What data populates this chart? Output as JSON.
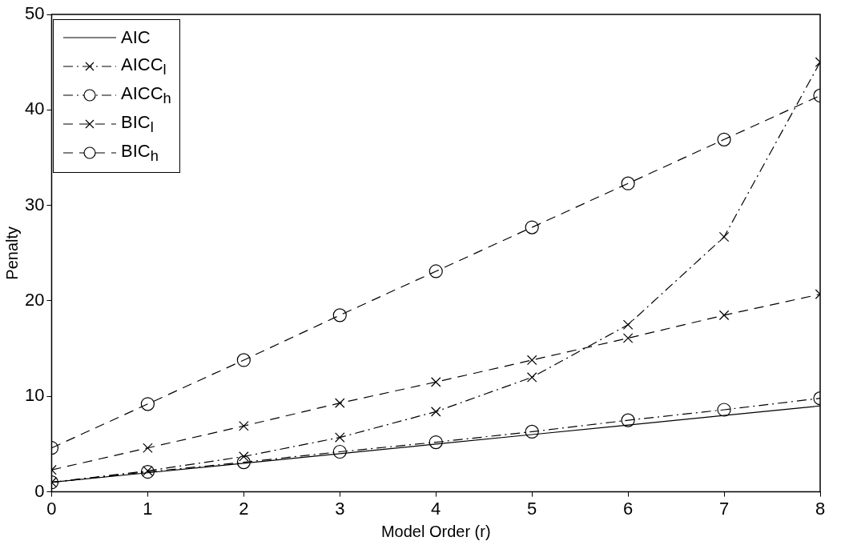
{
  "chart_data": {
    "type": "line",
    "xlabel": "Model Order (r)",
    "ylabel": "Penalty",
    "x": [
      0,
      1,
      2,
      3,
      4,
      5,
      6,
      7,
      8
    ],
    "xlim": [
      0,
      8
    ],
    "xticks": [
      0,
      1,
      2,
      3,
      4,
      5,
      6,
      7,
      8
    ],
    "ylim": [
      0,
      50
    ],
    "yticks": [
      0,
      10,
      20,
      30,
      40,
      50
    ],
    "grid": false,
    "legend": "top left",
    "series": [
      {
        "name": "AIC",
        "color": "#000000",
        "line_style": "solid",
        "marker": "none",
        "values": [
          1,
          2,
          3,
          4,
          5,
          6,
          7,
          8,
          9
        ]
      },
      {
        "name": "AICC$_{l}$",
        "color": "#000000",
        "line_style": "dashdot",
        "marker": "cross",
        "values": [
          1,
          2.2,
          3.7,
          5.7,
          8.4,
          12,
          17.5,
          26.7,
          45
        ]
      },
      {
        "name": "AICC$_{h}$",
        "color": "#000000",
        "line_style": "dashdot",
        "marker": "circle",
        "values": [
          1,
          2.1,
          3.1,
          4.2,
          5.2,
          6.3,
          7.5,
          8.6,
          9.8
        ]
      },
      {
        "name": "BIC$_{l}$",
        "color": "#000000",
        "line_style": "dashed",
        "marker": "cross",
        "values": [
          2.3,
          4.6,
          6.9,
          9.3,
          11.5,
          13.8,
          16.1,
          18.5,
          20.7
        ]
      },
      {
        "name": "BIC$_{h}$",
        "color": "#000000",
        "line_style": "dashed",
        "marker": "circle",
        "values": [
          4.6,
          9.2,
          13.8,
          18.5,
          23.1,
          27.7,
          32.3,
          36.9,
          41.5
        ]
      }
    ]
  }
}
